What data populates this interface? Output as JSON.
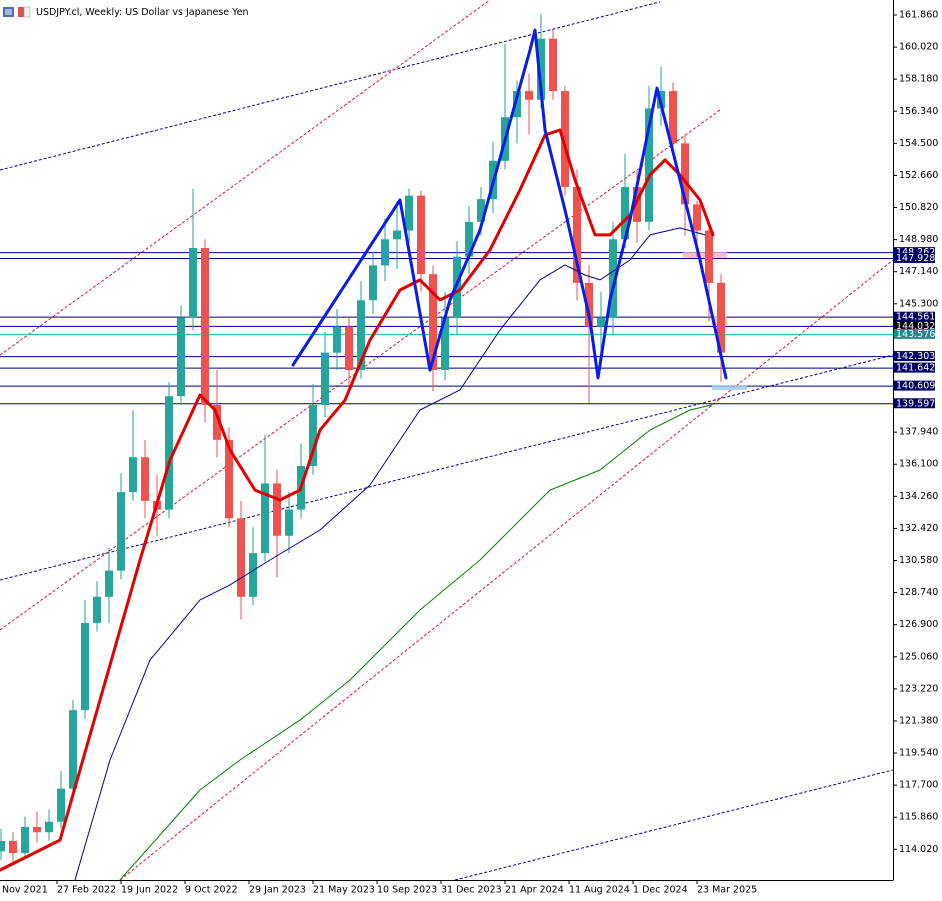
{
  "chart_data": {
    "type": "candlestick",
    "title": "USDJPY.cl, Weekly:  US Dollar vs Japanese Yen",
    "x": [
      2,
      5,
      8,
      11,
      14,
      17,
      20,
      23,
      26,
      29,
      32,
      35,
      38,
      41,
      44,
      47,
      50,
      53,
      56,
      59,
      62,
      65,
      68,
      71,
      74,
      77,
      80,
      83,
      86,
      89,
      92,
      95,
      98,
      101,
      104,
      107,
      110,
      113,
      116,
      119,
      122,
      125,
      128,
      131,
      134,
      137,
      140,
      143,
      146,
      149,
      152,
      155,
      158,
      161,
      164,
      167,
      170,
      173,
      176,
      179,
      182
    ],
    "open": [
      113.9,
      114.5,
      113.8,
      115.3,
      115.0,
      115.6,
      117.5,
      122.0,
      127.0,
      128.5,
      130.0,
      134.5,
      136.5,
      134.0,
      133.5,
      140.0,
      144.5,
      148.5,
      139.5,
      137.5,
      133.0,
      128.5,
      131.0,
      135.0,
      132.0,
      133.5,
      136.0,
      139.5,
      142.5,
      144.0,
      141.5,
      145.5,
      147.5,
      149.0,
      149.5,
      151.5,
      147.0,
      141.5,
      144.5,
      148.0,
      150.0,
      151.3,
      153.5,
      156.0,
      157.5,
      157.0,
      160.5,
      157.5,
      152.0,
      146.5,
      144.0,
      144.5,
      149.0,
      152.0,
      150.0,
      156.5,
      157.5,
      154.5,
      151.0,
      149.5,
      146.5
    ],
    "high": [
      115.2,
      115.0,
      115.9,
      116.2,
      116.3,
      118.5,
      122.6,
      128.3,
      129.4,
      131.3,
      135.6,
      139.2,
      137.5,
      135.5,
      140.8,
      145.2,
      151.9,
      149.0,
      141.5,
      138.2,
      134.0,
      132.5,
      137.8,
      135.8,
      134.5,
      137.3,
      140.7,
      143.7,
      145.0,
      144.5,
      146.6,
      148.3,
      150.2,
      151.2,
      151.9,
      151.8,
      147.5,
      146.0,
      148.9,
      150.9,
      152.0,
      154.6,
      160.2,
      158.1,
      158.5,
      161.9,
      161.0,
      157.8,
      153.0,
      147.5,
      146.0,
      150.0,
      153.9,
      153.0,
      157.8,
      158.9,
      158.0,
      155.0,
      151.2,
      150.0,
      147.0
    ],
    "low": [
      113.4,
      113.3,
      113.5,
      114.4,
      114.5,
      115.2,
      117.0,
      121.5,
      126.5,
      127.0,
      129.5,
      134.0,
      133.0,
      132.0,
      133.0,
      139.5,
      143.8,
      138.5,
      136.5,
      132.5,
      127.2,
      128.0,
      130.5,
      129.6,
      131.0,
      133.0,
      135.5,
      138.8,
      141.5,
      140.5,
      141.0,
      144.7,
      146.6,
      147.3,
      148.8,
      146.0,
      140.3,
      140.9,
      143.5,
      147.0,
      149.2,
      150.5,
      153.0,
      154.5,
      155.0,
      156.5,
      157.0,
      151.5,
      145.5,
      139.6,
      141.7,
      143.5,
      148.5,
      148.8,
      149.5,
      155.5,
      153.8,
      149.2,
      148.0,
      144.3,
      140.8
    ],
    "close": [
      114.5,
      113.8,
      115.3,
      115.0,
      115.6,
      117.5,
      122.0,
      127.0,
      128.5,
      130.0,
      134.5,
      136.5,
      134.0,
      133.5,
      140.0,
      144.5,
      148.5,
      139.5,
      137.5,
      133.0,
      128.5,
      131.0,
      135.0,
      132.0,
      133.5,
      136.0,
      139.5,
      142.5,
      144.0,
      141.5,
      145.5,
      147.5,
      149.0,
      149.5,
      151.5,
      147.0,
      141.5,
      144.5,
      148.0,
      150.0,
      151.3,
      153.5,
      156.0,
      157.5,
      157.0,
      160.5,
      157.5,
      152.0,
      146.5,
      144.0,
      144.5,
      149.0,
      152.0,
      150.0,
      156.5,
      157.5,
      154.5,
      151.0,
      149.5,
      146.5,
      142.5
    ],
    "up_color": "#26a69a",
    "down_color": "#ef5350",
    "xlim": [
      1.75,
      225
    ],
    "ylim": [
      112.26,
      162.72
    ],
    "xticks": [
      {
        "value": 0,
        "label": "Nov 2021"
      },
      {
        "value": 16,
        "label": "27 Feb 2022"
      },
      {
        "value": 32,
        "label": "19 Jun 2022"
      },
      {
        "value": 48,
        "label": "9 Oct 2022"
      },
      {
        "value": 64,
        "label": "29 Jan 2023"
      },
      {
        "value": 80,
        "label": "21 May 2023"
      },
      {
        "value": 96,
        "label": "10 Sep 2023"
      },
      {
        "value": 112,
        "label": "31 Dec 2023"
      },
      {
        "value": 128,
        "label": "21 Apr 2024"
      },
      {
        "value": 144,
        "label": "11 Aug 2024"
      },
      {
        "value": 160,
        "label": "1 Dec 2024"
      },
      {
        "value": 176,
        "label": "23 Mar 2025"
      }
    ],
    "yticks": [
      {
        "value": 161.86,
        "label": "161.860"
      },
      {
        "value": 160.02,
        "label": "160.020"
      },
      {
        "value": 158.18,
        "label": "158.180"
      },
      {
        "value": 156.34,
        "label": "156.340"
      },
      {
        "value": 154.5,
        "label": "154.500"
      },
      {
        "value": 152.66,
        "label": "152.660"
      },
      {
        "value": 150.82,
        "label": "150.820"
      },
      {
        "value": 148.98,
        "label": "148.980"
      },
      {
        "value": 147.14,
        "label": "147.140"
      },
      {
        "value": 145.3,
        "label": "145.300"
      },
      {
        "value": 137.94,
        "label": "137.940"
      },
      {
        "value": 136.1,
        "label": "136.100"
      },
      {
        "value": 134.26,
        "label": "134.260"
      },
      {
        "value": 132.42,
        "label": "132.420"
      },
      {
        "value": 130.58,
        "label": "130.580"
      },
      {
        "value": 128.74,
        "label": "128.740"
      },
      {
        "value": 126.9,
        "label": "126.900"
      },
      {
        "value": 125.06,
        "label": "125.060"
      },
      {
        "value": 123.22,
        "label": "123.220"
      },
      {
        "value": 121.38,
        "label": "121.380"
      },
      {
        "value": 119.54,
        "label": "119.540"
      },
      {
        "value": 117.7,
        "label": "117.700"
      },
      {
        "value": 115.86,
        "label": "115.860"
      },
      {
        "value": 114.02,
        "label": "114.020"
      }
    ],
    "grid": false,
    "levels": [
      {
        "value": 148.262,
        "color": "#000080",
        "box": "#000060"
      },
      {
        "value": 147.928,
        "color": "#000080",
        "box": "#000060"
      },
      {
        "value": 144.561,
        "color": "#000080",
        "box": "#000060"
      },
      {
        "value": 144.032,
        "color": "#000080",
        "box": "#000000"
      },
      {
        "value": 143.576,
        "color": "#20b2aa",
        "box": "#1e8a8a"
      },
      {
        "value": 142.303,
        "color": "#000080",
        "box": "#000060"
      },
      {
        "value": 141.642,
        "color": "#000080",
        "box": "#000060"
      },
      {
        "value": 140.609,
        "color": "#000080",
        "box": "#000060"
      },
      {
        "value": 139.597,
        "color": "#000080",
        "box": "#000060"
      }
    ],
    "zones": [
      {
        "color": "#ffb6c8",
        "x": [
          172.5,
          183.5
        ],
        "values": [
          148.262,
          147.928
        ]
      },
      {
        "color": "#ffb6c8",
        "x": [
          179.75,
          183.5
        ],
        "values": [
          144.561,
          144.032
        ]
      },
      {
        "color": "#9ccfee",
        "x": [
          179.75,
          188.5
        ],
        "values": [
          140.64,
          140.36
        ]
      }
    ],
    "trendlines": [
      {
        "color": "#00008b",
        "x": [
          1.75,
          166.75
        ],
        "values": [
          152.97,
          162.61
        ]
      },
      {
        "color": "#00008b",
        "x": [
          1.75,
          225
        ],
        "values": [
          129.46,
          142.36
        ]
      },
      {
        "color": "#00008b",
        "x": [
          115.5,
          225
        ],
        "values": [
          112.26,
          118.57
        ]
      },
      {
        "color": "#dc143c",
        "x": [
          1.75,
          124.25
        ],
        "values": [
          142.36,
          162.72
        ]
      },
      {
        "color": "#dc143c",
        "x": [
          1.75,
          181.75
        ],
        "values": [
          126.6,
          156.41
        ]
      },
      {
        "color": "#dc143c",
        "x": [
          31.75,
          225
        ],
        "values": [
          112.26,
          147.81
        ]
      }
    ],
    "overlays": [
      {
        "color": "#008000",
        "width": 1,
        "x": [
          31.75,
          51.75,
          61.75,
          76.75,
          89.25,
          106.75,
          121.75,
          139.25,
          151.75,
          164.25,
          174.25,
          179.75
        ],
        "values": [
          112.26,
          117.42,
          119.14,
          121.43,
          123.73,
          127.74,
          130.61,
          134.62,
          135.77,
          138.06,
          139.21,
          139.5
        ]
      },
      {
        "color": "#00008b",
        "width": 1,
        "x": [
          20.5,
          29.25,
          39.25,
          51.75,
          59.25,
          69.25,
          81.75,
          94.25,
          106.75,
          116.75,
          126.75,
          136.75,
          143,
          148,
          151.75,
          159.25,
          164.25,
          171.75,
          178
        ],
        "values": [
          112.26,
          119.14,
          124.87,
          128.32,
          129.18,
          130.61,
          132.33,
          134.91,
          139.21,
          140.36,
          143.8,
          146.67,
          147.53,
          146.95,
          146.67,
          147.81,
          149.25,
          149.65,
          149.25
        ]
      },
      {
        "color": "#e00000",
        "width": 3,
        "x": [
          1.75,
          16.75,
          26.75,
          36.75,
          44.25,
          51.75,
          55.5,
          59.25,
          65.5,
          71.75,
          76.75,
          81.75,
          88,
          94.25,
          101.75,
          106.75,
          111.75,
          116.75,
          124.25,
          131.75,
          138,
          141.75,
          145.5,
          150.5,
          154.25,
          159.25,
          164.25,
          168,
          171.75,
          176.75,
          180
        ],
        "values": [
          112.83,
          114.55,
          122.58,
          130.61,
          136.34,
          140.07,
          139.21,
          136.92,
          134.62,
          134.05,
          134.62,
          138.06,
          139.78,
          143.22,
          146.09,
          146.67,
          145.52,
          146.09,
          148.39,
          151.83,
          154.98,
          155.27,
          152.4,
          149.25,
          149.25,
          150.39,
          152.69,
          153.55,
          152.69,
          151.25,
          149.25
        ]
      },
      {
        "color": "#0a1de6",
        "width": 3,
        "x": [
          75,
          101.75,
          109.25,
          114.25,
          121.75,
          134.25,
          135.5,
          138,
          143,
          149.25,
          151.25,
          154.25,
          159.25,
          166,
          169.25,
          176.75,
          183.25
        ],
        "values": [
          141.79,
          151.25,
          141.5,
          145.52,
          149.53,
          159.85,
          161.0,
          155.27,
          150.68,
          144.37,
          141.05,
          145.52,
          150.11,
          157.67,
          154.69,
          147.81,
          141.05
        ]
      }
    ]
  }
}
